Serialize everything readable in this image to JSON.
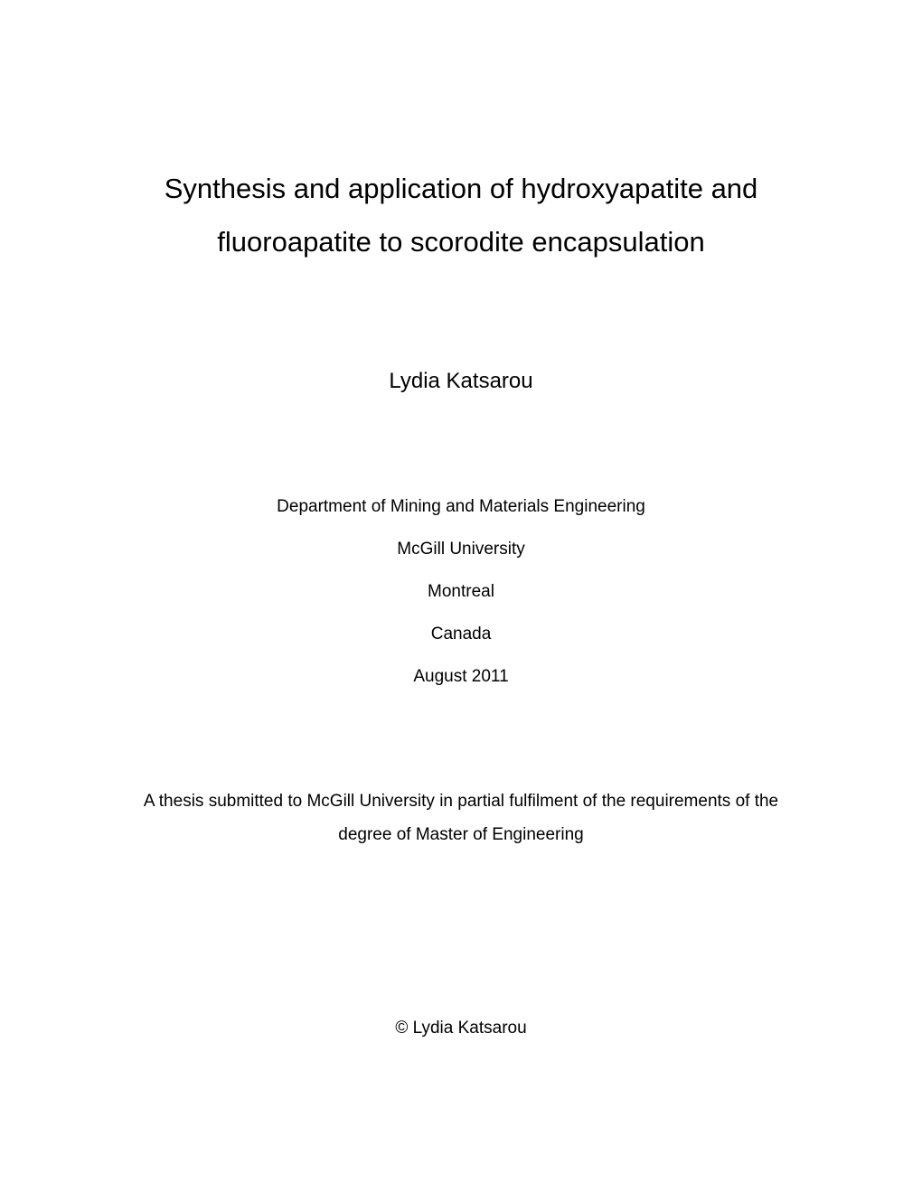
{
  "title_line1": "Synthesis and application of hydroxyapatite and",
  "title_line2": "fluoroapatite to scorodite encapsulation",
  "author": "Lydia Katsarou",
  "department": "Department of Mining and Materials Engineering",
  "university": "McGill University",
  "city": "Montreal",
  "country": "Canada",
  "date": "August 2011",
  "thesis_statement_line1": "A thesis submitted to McGill University in partial fulfilment of the requirements of the",
  "thesis_statement_line2": "degree of Master of Engineering",
  "copyright": "© Lydia Katsarou"
}
